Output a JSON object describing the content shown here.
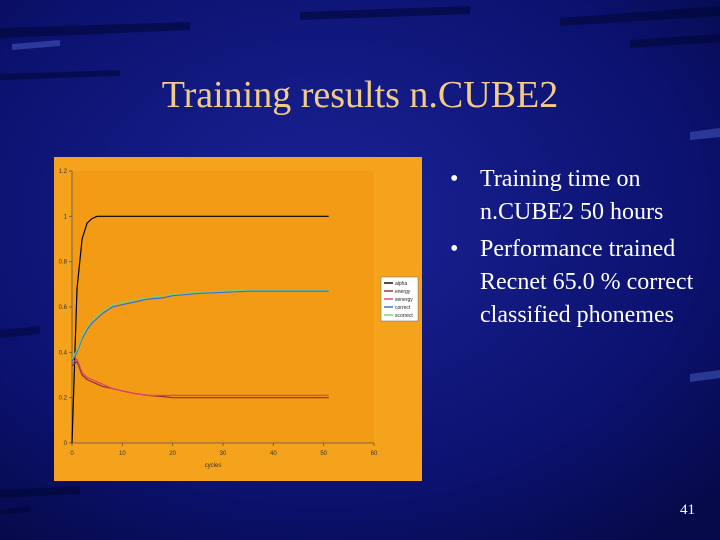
{
  "slide": {
    "title": "Training results n.CUBE2",
    "bullets": [
      "Training time on n.CUBE2 50 hours",
      "Performance trained Recnet 65.0 % correct classified phonemes"
    ],
    "bullet_symbol": "•",
    "page_number": "41",
    "colors": {
      "background": "#0a0f6e",
      "title": "#f2cc86",
      "text": "#ffffff",
      "chart_area": "#f5a21c"
    }
  },
  "chart_data": {
    "type": "line",
    "xlabel": "cycles",
    "ylabel": "",
    "xlim": [
      0,
      60
    ],
    "ylim": [
      0,
      1.2
    ],
    "x_ticks": [
      "0",
      "10",
      "20",
      "30",
      "40",
      "50",
      "60"
    ],
    "y_ticks": [
      "0",
      "0.2",
      "0.4",
      "0.6",
      "0.8",
      "1",
      "1.2"
    ],
    "grid": false,
    "legend_position": "right",
    "x": [
      0,
      1,
      2,
      3,
      4,
      5,
      6,
      8,
      10,
      12,
      15,
      18,
      20,
      25,
      30,
      35,
      40,
      45,
      50,
      51
    ],
    "series": [
      {
        "name": "alpha",
        "color": "#000000",
        "values": [
          0.0,
          0.68,
          0.9,
          0.97,
          0.99,
          1.0,
          1.0,
          1.0,
          1.0,
          1.0,
          1.0,
          1.0,
          1.0,
          1.0,
          1.0,
          1.0,
          1.0,
          1.0,
          1.0,
          1.0
        ]
      },
      {
        "name": "energy",
        "color": "#8b2f2f",
        "values": [
          0.34,
          0.36,
          0.3,
          0.28,
          0.27,
          0.26,
          0.25,
          0.24,
          0.23,
          0.22,
          0.21,
          0.205,
          0.2,
          0.2,
          0.2,
          0.2,
          0.2,
          0.2,
          0.2,
          0.2
        ]
      },
      {
        "name": "senergy",
        "color": "#e0407a",
        "values": [
          0.35,
          0.37,
          0.31,
          0.29,
          0.28,
          0.27,
          0.26,
          0.24,
          0.23,
          0.22,
          0.21,
          0.21,
          0.21,
          0.21,
          0.21,
          0.21,
          0.21,
          0.21,
          0.21,
          0.21
        ]
      },
      {
        "name": "correct",
        "color": "#3b6ad6",
        "values": [
          0.36,
          0.4,
          0.46,
          0.5,
          0.53,
          0.55,
          0.57,
          0.6,
          0.61,
          0.62,
          0.635,
          0.64,
          0.65,
          0.66,
          0.665,
          0.67,
          0.67,
          0.67,
          0.67,
          0.67
        ]
      },
      {
        "name": "scorrect",
        "color": "#7ccf72",
        "values": [
          0.37,
          0.41,
          0.47,
          0.51,
          0.54,
          0.56,
          0.58,
          0.61,
          0.62,
          0.63,
          0.64,
          0.65,
          0.655,
          0.665,
          0.67,
          0.675,
          0.675,
          0.675,
          0.675,
          0.675
        ]
      }
    ]
  }
}
